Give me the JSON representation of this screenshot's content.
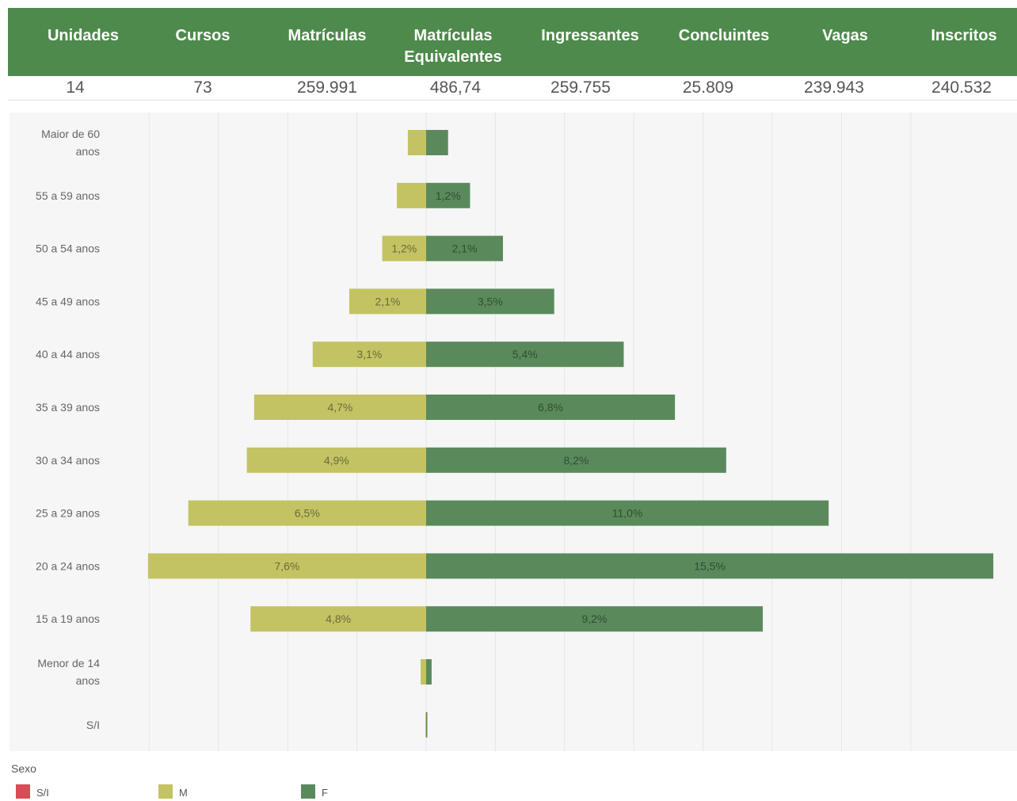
{
  "stats": {
    "headers": [
      "Unidades",
      "Cursos",
      "Matrículas",
      "Matrículas Equivalentes",
      "Ingressantes",
      "Concluintes",
      "Vagas",
      "Inscritos"
    ],
    "values": [
      "14",
      "73",
      "259.991",
      "486,74",
      "259.755",
      "25.809",
      "239.943",
      "240.532"
    ]
  },
  "chart_data": {
    "type": "bar",
    "orientation": "horizontal-diverging",
    "categories": [
      "Maior de 60 anos",
      "55 a 59 anos",
      "50 a 54 anos",
      "45 a 49 anos",
      "40 a 44 anos",
      "35 a 39 anos",
      "30 a 34 anos",
      "25 a 29 anos",
      "20 a 24 anos",
      "15 a 19 anos",
      "Menor de 14 anos",
      "S/I"
    ],
    "series": [
      {
        "name": "M",
        "color": "#c3c363",
        "direction": "left",
        "values": [
          0.5,
          0.8,
          1.2,
          2.1,
          3.1,
          4.7,
          4.9,
          6.5,
          7.6,
          4.8,
          0.15,
          0.02
        ],
        "labels": [
          "",
          "",
          "1,2%",
          "2,1%",
          "3,1%",
          "4,7%",
          "4,9%",
          "6,5%",
          "7,6%",
          "4,8%",
          "",
          ""
        ]
      },
      {
        "name": "F",
        "color": "#5a8a5c",
        "direction": "right",
        "values": [
          0.6,
          1.2,
          2.1,
          3.5,
          5.4,
          6.8,
          8.2,
          11.0,
          15.5,
          9.2,
          0.15,
          0.02
        ],
        "labels": [
          "",
          "1,2%",
          "2,1%",
          "3,5%",
          "5,4%",
          "6,8%",
          "8,2%",
          "11,0%",
          "15,5%",
          "9,2%",
          "",
          ""
        ]
      }
    ],
    "legend": {
      "title": "Sexo",
      "placement": "bottom-left",
      "items": [
        {
          "label": "S/I",
          "color": "#d94b56"
        },
        {
          "label": "M",
          "color": "#c3c363"
        },
        {
          "label": "F",
          "color": "#5a8a5c"
        }
      ]
    },
    "grid": true,
    "xlim": [
      -7.6,
      15.5
    ]
  }
}
